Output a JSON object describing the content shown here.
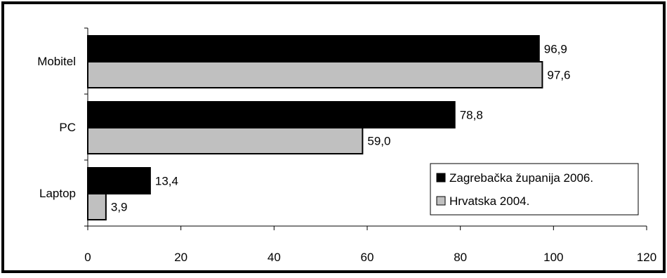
{
  "chart_data": {
    "type": "bar",
    "orientation": "horizontal",
    "categories": [
      "Mobitel",
      "PC",
      "Laptop"
    ],
    "series": [
      {
        "name": "Zagrebačka županija 2006.",
        "values": [
          96.9,
          78.8,
          13.4
        ],
        "labels": [
          "96,9",
          "78,8",
          "13,4"
        ],
        "color": "#000000"
      },
      {
        "name": "Hrvatska 2004.",
        "values": [
          97.6,
          59.0,
          3.9
        ],
        "labels": [
          "97,6",
          "59,0",
          "3,9"
        ],
        "color": "#c0c0c0"
      }
    ],
    "xlim": [
      0,
      120
    ],
    "xticks": [
      "0",
      "20",
      "40",
      "60",
      "80",
      "100",
      "120"
    ],
    "grid": false,
    "legend_position": "bottom-right"
  }
}
